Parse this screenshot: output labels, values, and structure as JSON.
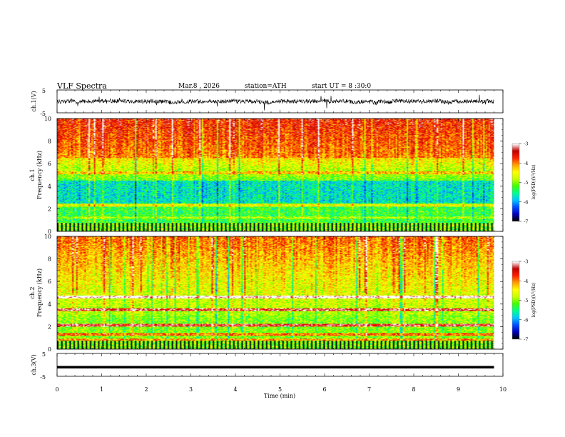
{
  "header": {
    "title": "VLF  Spectra",
    "date": "Mar.8  , 2026",
    "station": "station=ATH",
    "start": "start  UT  =   8  :30:0"
  },
  "chart_data": [
    {
      "type": "line",
      "name": "ch1-waveform",
      "ylabel": "ch.1(V)",
      "ylim": [
        -5,
        5
      ],
      "yticks": [
        "5",
        "-5"
      ],
      "xlim": [
        0,
        10
      ],
      "line_color": "#000000"
    },
    {
      "type": "heatmap",
      "name": "ch1-spectrogram",
      "ylabel_line1": "ch.1",
      "ylabel_line2": "Frequency  (kHz)",
      "ylim": [
        0,
        10
      ],
      "yticks": [
        "0",
        "2",
        "4",
        "6",
        "8",
        "10"
      ],
      "xlim": [
        0,
        10
      ],
      "data_xmax": 9.8,
      "colorbar": {
        "label": "log(PSD)(V²/Hz)",
        "range": [
          -7,
          -3
        ],
        "ticks": [
          "-3",
          "-4",
          "-5",
          "-6",
          "-7"
        ],
        "colormap": [
          "#000000",
          "#0000c0",
          "#0050ff",
          "#00c8ff",
          "#00ff90",
          "#40ff00",
          "#c8ff00",
          "#ffff00",
          "#ffa000",
          "#ff2000",
          "#c00000",
          "#ffffff"
        ]
      }
    },
    {
      "type": "heatmap",
      "name": "ch2-spectrogram",
      "ylabel_line1": "ch.2",
      "ylabel_line2": "Frequency  (kHz)",
      "ylim": [
        0,
        10
      ],
      "yticks": [
        "0",
        "2",
        "4",
        "6",
        "8",
        "10"
      ],
      "xlim": [
        0,
        10
      ],
      "data_xmax": 9.8,
      "colorbar": {
        "label": "log(PSD)(V²/Hz)",
        "range": [
          -7,
          -3
        ],
        "ticks": [
          "-3",
          "-4",
          "-5",
          "-6",
          "-7"
        ],
        "colormap": [
          "#000000",
          "#0000c0",
          "#0050ff",
          "#00c8ff",
          "#00ff90",
          "#40ff00",
          "#c8ff00",
          "#ffff00",
          "#ffa000",
          "#ff2000",
          "#c00000",
          "#ffffff"
        ]
      }
    },
    {
      "type": "line",
      "name": "ch3-waveform",
      "ylabel": "ch.3(V)",
      "ylim": [
        -5,
        5
      ],
      "yticks": [
        "5",
        "-5"
      ],
      "xlim": [
        0,
        10
      ],
      "level": -1,
      "line_color": "#000000"
    }
  ],
  "xaxis": {
    "label": "Time  (min)",
    "ticks": [
      "0",
      "1",
      "2",
      "3",
      "4",
      "5",
      "6",
      "7",
      "8",
      "9",
      "10"
    ]
  }
}
